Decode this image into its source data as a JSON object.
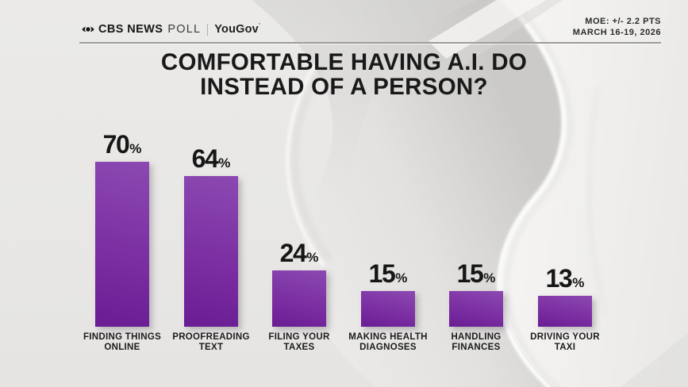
{
  "header": {
    "cbs_brand": "CBS NEWS",
    "poll_label": "POLL",
    "partner_brand": "YouGov",
    "trademark": "’",
    "moe_line1": "MOE: +/- 2.2 PTS",
    "date_line": "MARCH 16-19, 2026"
  },
  "title": {
    "line1": "COMFORTABLE HAVING A.I. DO",
    "line2": "INSTEAD OF A PERSON?"
  },
  "chart_data": {
    "type": "bar",
    "title": "COMFORTABLE HAVING A.I. DO INSTEAD OF A PERSON?",
    "unit": "%",
    "ylim": [
      0,
      100
    ],
    "grid": false,
    "legend": false,
    "bar_color_top": "#8c49b1",
    "bar_color_mid": "#7b2fa2",
    "bar_color_bottom": "#6a1d93",
    "categories": [
      "FINDING THINGS ONLINE",
      "PROOFREADING TEXT",
      "FILING YOUR TAXES",
      "MAKING HEALTH DIAGNOSES",
      "HANDLING FINANCES",
      "DRIVING YOUR TAXI"
    ],
    "values": [
      70,
      64,
      24,
      15,
      15,
      13
    ],
    "label_lines": [
      [
        "FINDING THINGS",
        "ONLINE"
      ],
      [
        "PROOFREADING",
        "TEXT"
      ],
      [
        "FILING YOUR",
        "TAXES"
      ],
      [
        "MAKING HEALTH",
        "DIAGNOSES"
      ],
      [
        "HANDLING",
        "FINANCES"
      ],
      [
        "DRIVING YOUR",
        "TAXI"
      ]
    ]
  }
}
